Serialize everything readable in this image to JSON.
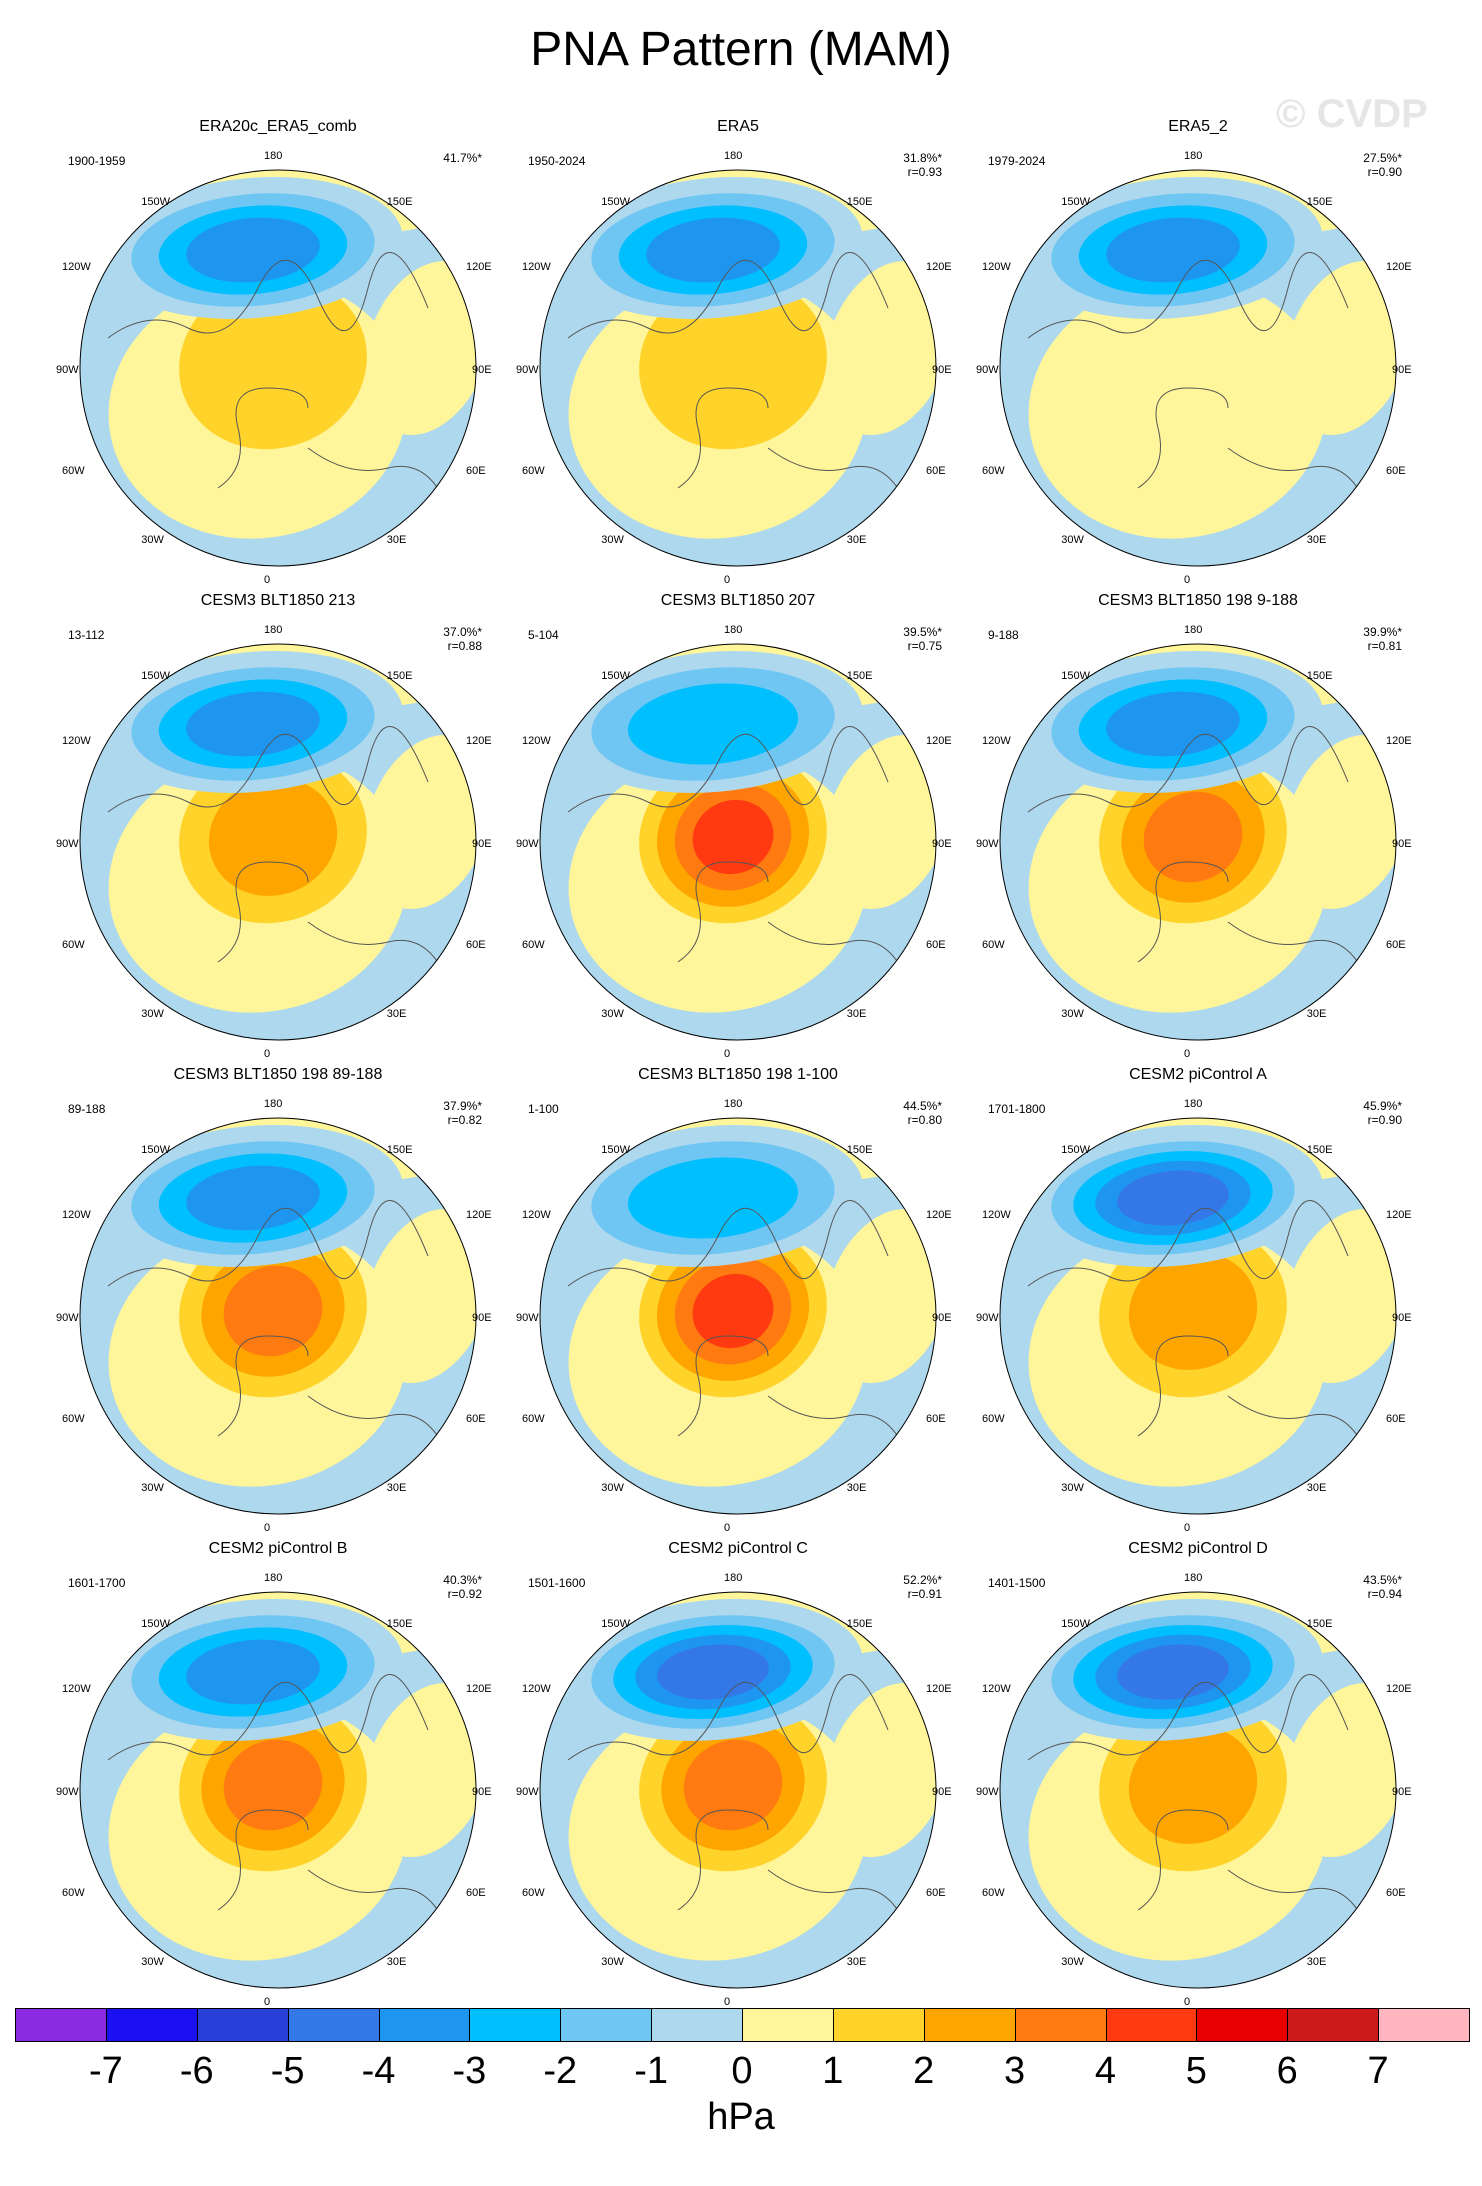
{
  "title": "PNA Pattern (MAM)",
  "watermark": "© CVDP",
  "lon_labels": {
    "top": "180",
    "bottom": "0",
    "upper_left": "150W",
    "upper_right": "150E",
    "mid_upper_left": "120W",
    "mid_upper_right": "120E",
    "left": "90W",
    "right": "90E",
    "mid_lower_left": "60W",
    "mid_lower_right": "60E",
    "lower_left": "30W",
    "lower_right": "30E"
  },
  "chart_data": {
    "type": "heatmap",
    "projection": "polar-stereographic, Northern Hemisphere",
    "variable": "PNA Pattern (MAM)",
    "units": "hPa",
    "colorbar": {
      "levels": [
        "-7",
        "-6",
        "-5",
        "-4",
        "-3",
        "-2",
        "-1",
        "0",
        "1",
        "2",
        "3",
        "4",
        "5",
        "6",
        "7"
      ],
      "colors": [
        "#8a2be2",
        "#1a10f2",
        "#2840d8",
        "#3378e6",
        "#1e96f0",
        "#00bfff",
        "#6fc6f2",
        "#add8ee",
        "#fff59a",
        "#ffd32a",
        "#ffa500",
        "#ff7a10",
        "#ff3a10",
        "#e80000",
        "#cd1b1b",
        "#ffb6c1"
      ]
    },
    "panels": [
      {
        "title": "ERA20c_ERA5_comb",
        "period": "1900-1959",
        "pct_variance": "41.7%*",
        "r": "",
        "low_max": -4,
        "high_max": 2
      },
      {
        "title": "ERA5",
        "period": "1950-2024",
        "pct_variance": "31.8%*",
        "r": "r=0.93",
        "low_max": -4,
        "high_max": 2
      },
      {
        "title": "ERA5_2",
        "period": "1979-2024",
        "pct_variance": "27.5%*",
        "r": "r=0.90",
        "low_max": -4,
        "high_max": 1
      },
      {
        "title": "CESM3 BLT1850 213",
        "period": "13-112",
        "pct_variance": "37.0%*",
        "r": "r=0.88",
        "low_max": -4,
        "high_max": 3
      },
      {
        "title": "CESM3 BLT1850 207",
        "period": "5-104",
        "pct_variance": "39.5%*",
        "r": "r=0.75",
        "low_max": -3,
        "high_max": 5
      },
      {
        "title": "CESM3 BLT1850 198 9-188",
        "period": "9-188",
        "pct_variance": "39.9%*",
        "r": "r=0.81",
        "low_max": -4,
        "high_max": 4
      },
      {
        "title": "CESM3 BLT1850 198 89-188",
        "period": "89-188",
        "pct_variance": "37.9%*",
        "r": "r=0.82",
        "low_max": -4,
        "high_max": 4
      },
      {
        "title": "CESM3 BLT1850 198 1-100",
        "period": "1-100",
        "pct_variance": "44.5%*",
        "r": "r=0.80",
        "low_max": -3,
        "high_max": 5
      },
      {
        "title": "CESM2 piControl A",
        "period": "1701-1800",
        "pct_variance": "45.9%*",
        "r": "r=0.90",
        "low_max": -5,
        "high_max": 3
      },
      {
        "title": "CESM2 piControl B",
        "period": "1601-1700",
        "pct_variance": "40.3%*",
        "r": "r=0.92",
        "low_max": -4,
        "high_max": 4
      },
      {
        "title": "CESM2 piControl C",
        "period": "1501-1600",
        "pct_variance": "52.2%*",
        "r": "r=0.91",
        "low_max": -5,
        "high_max": 4
      },
      {
        "title": "CESM2 piControl D",
        "period": "1401-1500",
        "pct_variance": "43.5%*",
        "r": "r=0.94",
        "low_max": -5,
        "high_max": 3
      }
    ]
  }
}
